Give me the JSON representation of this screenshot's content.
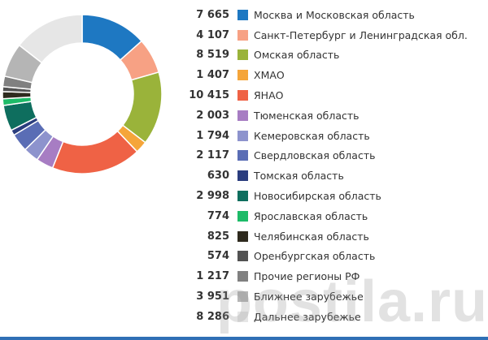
{
  "chart_data": {
    "type": "pie",
    "donut": true,
    "labels": [
      "Москва и Московская область",
      "Санкт-Петербург и Ленинградская обл.",
      "Омская область",
      "ХМАО",
      "ЯНАО",
      "Тюменская область",
      "Кемеровская область",
      "Свердловская область",
      "Томская область",
      "Новосибирская область",
      "Ярославская область",
      "Челябинская область",
      "Оренбургская область",
      "Прочие регионы РФ",
      "Ближнее зарубежье",
      "Дальнее зарубежье"
    ],
    "values": [
      7665,
      4107,
      8519,
      1407,
      10415,
      2003,
      1794,
      2117,
      630,
      2998,
      774,
      825,
      574,
      1217,
      3951,
      8286
    ],
    "value_labels": [
      "7 665",
      "4 107",
      "8 519",
      "1 407",
      "10 415",
      "2 003",
      "1 794",
      "2 117",
      "630",
      "2 998",
      "774",
      "825",
      "574",
      "1 217",
      "3 951",
      "8 286"
    ],
    "colors": [
      "#1e78c2",
      "#f7a184",
      "#9ab33a",
      "#f5a53a",
      "#ef6245",
      "#a77dc3",
      "#8d93cd",
      "#5a6db5",
      "#2b3d7e",
      "#0e6e5e",
      "#1dbb68",
      "#2e2a1e",
      "#525252",
      "#808080",
      "#b5b5b5",
      "#e6e6e6"
    ],
    "legend_position": "right"
  },
  "watermark": "postila.ru"
}
